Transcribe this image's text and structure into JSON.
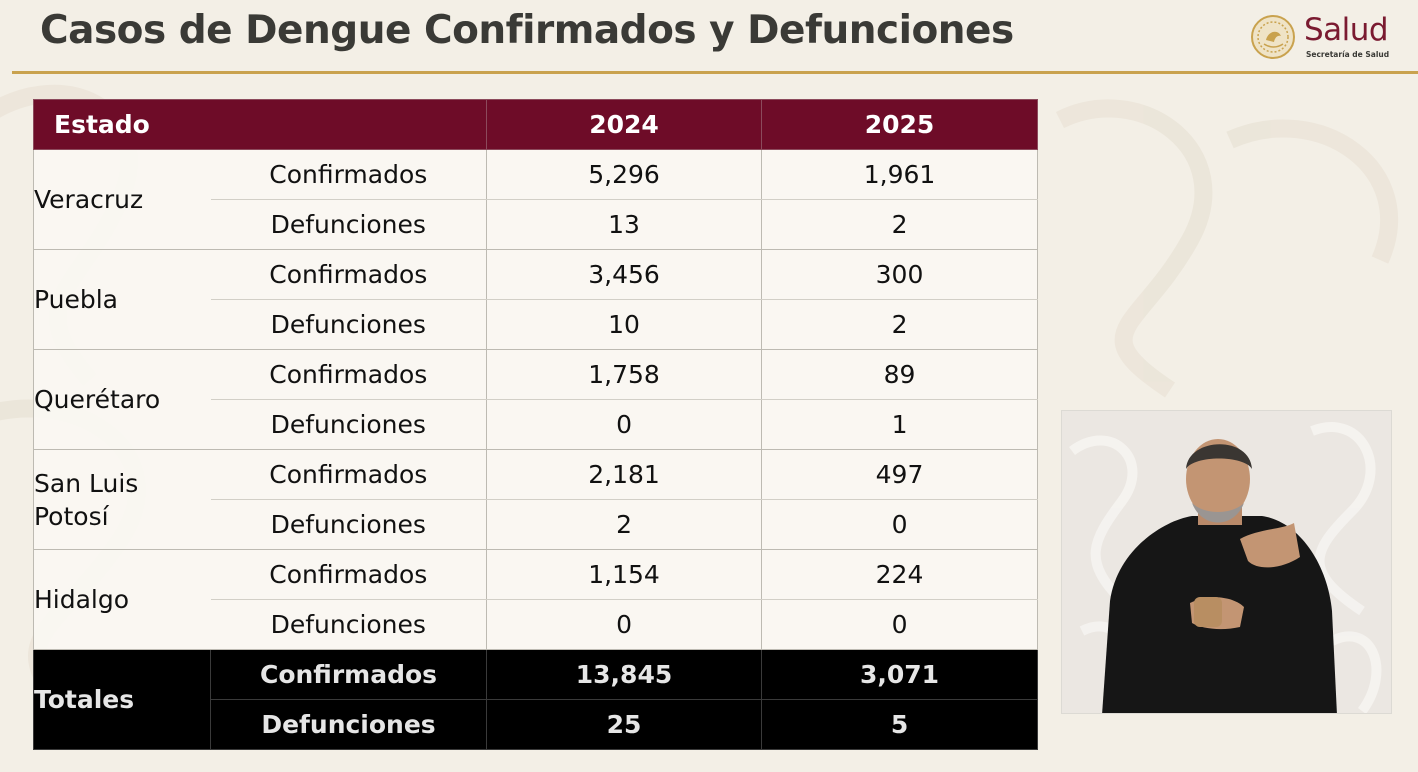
{
  "header": {
    "title": "Casos de Dengue Confirmados y Defunciones",
    "logo_text": "Salud",
    "logo_subtitle": "Secretaría de Salud",
    "accent_color": "#c9a24e",
    "brand_color": "#7a1a30"
  },
  "table": {
    "header_color": "#6e0c28",
    "columns": {
      "state": "Estado",
      "year1": "2024",
      "year2": "2025"
    },
    "rows": [
      {
        "state_lines": [
          "Veracruz"
        ],
        "confirmados": {
          "label": "Confirmados",
          "y2024": "5,296",
          "y2025": "1,961"
        },
        "defunciones": {
          "label": "Defunciones",
          "y2024": "13",
          "y2025": "2"
        }
      },
      {
        "state_lines": [
          "Puebla"
        ],
        "confirmados": {
          "label": "Confirmados",
          "y2024": "3,456",
          "y2025": "300"
        },
        "defunciones": {
          "label": "Defunciones",
          "y2024": "10",
          "y2025": "2"
        }
      },
      {
        "state_lines": [
          "Querétaro"
        ],
        "confirmados": {
          "label": "Confirmados",
          "y2024": "1,758",
          "y2025": "89"
        },
        "defunciones": {
          "label": "Defunciones",
          "y2024": "0",
          "y2025": "1"
        }
      },
      {
        "state_lines": [
          "San Luis",
          "Potosí"
        ],
        "confirmados": {
          "label": "Confirmados",
          "y2024": "2,181",
          "y2025": "497"
        },
        "defunciones": {
          "label": "Defunciones",
          "y2024": "2",
          "y2025": "0"
        }
      },
      {
        "state_lines": [
          "Hidalgo"
        ],
        "confirmados": {
          "label": "Confirmados",
          "y2024": "1,154",
          "y2025": "224"
        },
        "defunciones": {
          "label": "Defunciones",
          "y2024": "0",
          "y2025": "0"
        }
      }
    ],
    "totals": {
      "label": "Totales",
      "confirmados": {
        "label": "Confirmados",
        "y2024": "13,845",
        "y2025": "3,071"
      },
      "defunciones": {
        "label": "Defunciones",
        "y2024": "25",
        "y2025": "5"
      }
    }
  }
}
